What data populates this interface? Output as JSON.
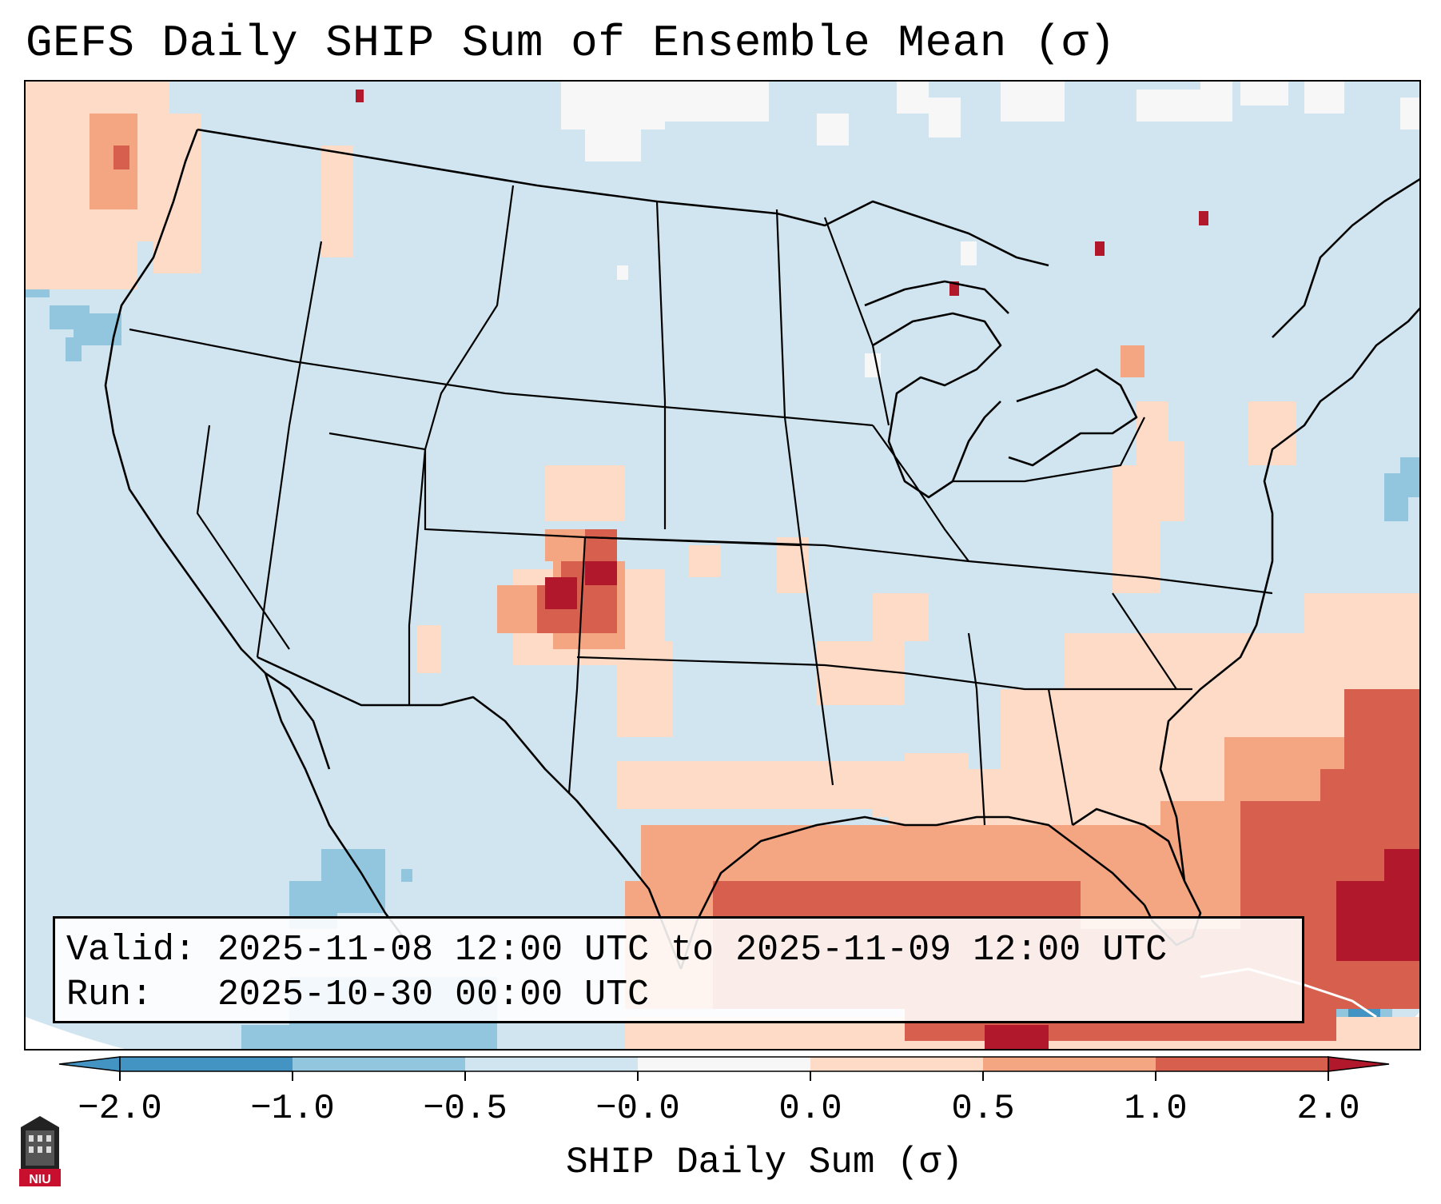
{
  "title": "GEFS Daily SHIP Sum of Ensemble Mean (σ)",
  "info": {
    "valid_line": "Valid: 2025-11-08 12:00 UTC to 2025-11-09 12:00 UTC",
    "run_line": "Run:   2025-10-30 00:00 UTC"
  },
  "colorbar": {
    "label": "SHIP Daily Sum (σ)",
    "ticks": [
      "−2.0",
      "−1.0",
      "−0.5",
      "−0.0",
      "0.0",
      "0.5",
      "1.0",
      "2.0"
    ],
    "colors": [
      "#4393c3",
      "#92c5de",
      "#d1e5f0",
      "#f7f7f7",
      "#fddbc7",
      "#f4a582",
      "#d6604d",
      "#b2182b"
    ]
  },
  "map": {
    "region": "Continental United States",
    "background_color": "#d1e5f0",
    "highlight_areas": [
      "Pacific Northwest coast",
      "Southern Colorado / Oklahoma panhandle",
      "Gulf of Mexico",
      "Southeast US coast",
      "Western Atlantic / Bahamas"
    ]
  },
  "logo": {
    "text": "NIU"
  }
}
